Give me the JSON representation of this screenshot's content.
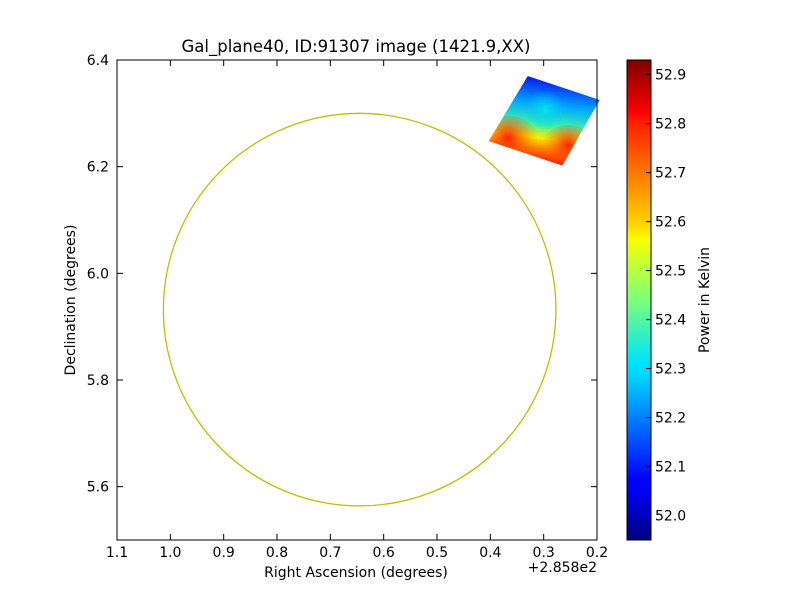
{
  "chart_data": {
    "type": "heatmap",
    "title": "Gal_plane40, ID:91307 image (1421.9,XX)",
    "xlabel": "Right Ascension (degrees)",
    "ylabel": "Declination (degrees)",
    "x_offset_label": "+2.858e2",
    "xlim": [
      1.1,
      0.2
    ],
    "ylim": [
      5.5,
      6.4
    ],
    "x_ticks": [
      1.1,
      1.0,
      0.9,
      0.8,
      0.7,
      0.6,
      0.5,
      0.4,
      0.3,
      0.2
    ],
    "x_tick_labels": [
      "1.1",
      "1.0",
      "0.9",
      "0.8",
      "0.7",
      "0.6",
      "0.5",
      "0.4",
      "0.3",
      "0.2"
    ],
    "y_ticks": [
      5.6,
      5.8,
      6.0,
      6.2,
      6.4
    ],
    "y_tick_labels": [
      "5.6",
      "5.8",
      "6.0",
      "6.2",
      "6.4"
    ],
    "grid": false,
    "circle": {
      "center_x": 0.645,
      "center_y": 5.932,
      "radius_deg": 0.368,
      "color": "#bfbf00"
    },
    "heatmap_tile": {
      "corners": [
        [
          0.33,
          6.37
        ],
        [
          0.195,
          6.325
        ],
        [
          0.265,
          6.202
        ],
        [
          0.403,
          6.248
        ]
      ],
      "value_range": [
        52.0,
        52.9
      ]
    },
    "colorbar": {
      "label": "Power in Kelvin",
      "cmap": "jet",
      "vmin": 51.95,
      "vmax": 52.93,
      "ticks": [
        52.0,
        52.1,
        52.2,
        52.3,
        52.4,
        52.5,
        52.6,
        52.7,
        52.8,
        52.9
      ],
      "tick_labels": [
        "52.0",
        "52.1",
        "52.2",
        "52.3",
        "52.4",
        "52.5",
        "52.6",
        "52.7",
        "52.8",
        "52.9"
      ]
    }
  }
}
